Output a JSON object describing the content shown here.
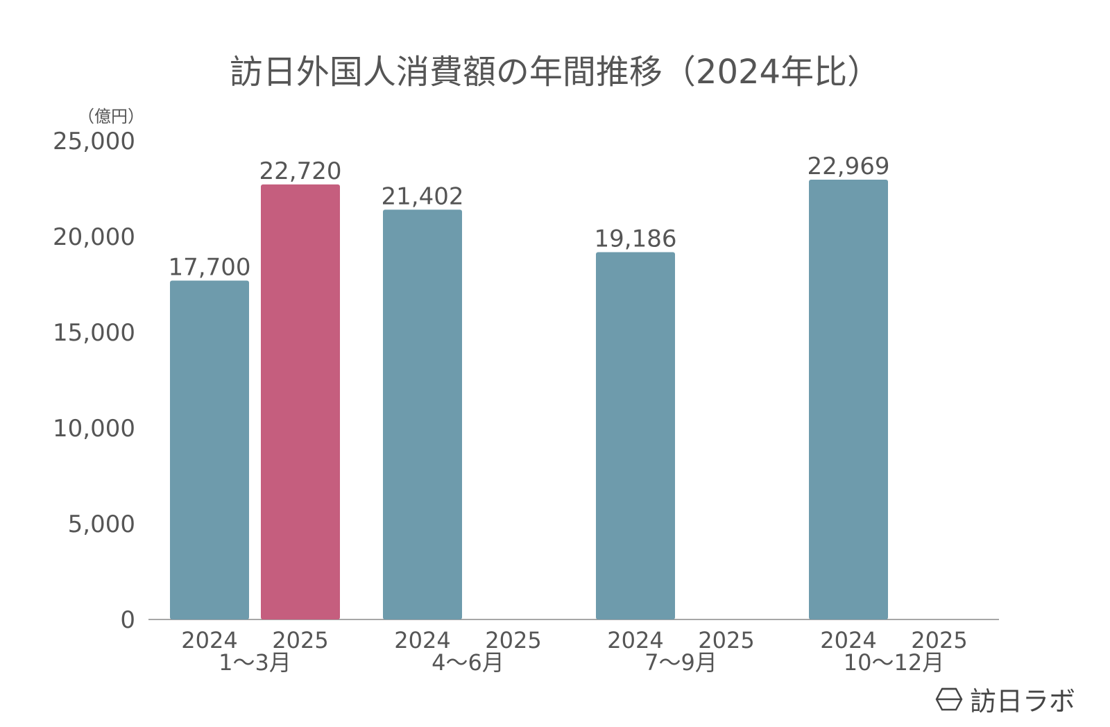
{
  "title": "訪日外国人消費額の年間推移（2024年比）",
  "unit_label": "（億円）",
  "brand": {
    "name": "訪日ラボ",
    "icon": "diamond-logo-icon"
  },
  "colors": {
    "2024": "#6e9bac",
    "2025": "#c55e7e",
    "axis": "#888888",
    "text": "#555555"
  },
  "chart_data": {
    "type": "bar",
    "title": "訪日外国人消費額の年間推移（2024年比）",
    "ylabel": "（億円）",
    "ylim": [
      0,
      25000
    ],
    "yticks": [
      0,
      5000,
      10000,
      15000,
      20000,
      25000
    ],
    "ytick_labels": [
      "0",
      "5,000",
      "10,000",
      "15,000",
      "20,000",
      "25,000"
    ],
    "grid": false,
    "groups": [
      {
        "label": "1〜3月",
        "bars": [
          {
            "year": "2024",
            "value": 17700,
            "label": "17,700"
          },
          {
            "year": "2025",
            "value": 22720,
            "label": "22,720"
          }
        ]
      },
      {
        "label": "4〜6月",
        "bars": [
          {
            "year": "2024",
            "value": 21402,
            "label": "21,402"
          },
          {
            "year": "2025",
            "value": null,
            "label": ""
          }
        ]
      },
      {
        "label": "7〜9月",
        "bars": [
          {
            "year": "2024",
            "value": 19186,
            "label": "19,186"
          },
          {
            "year": "2025",
            "value": null,
            "label": ""
          }
        ]
      },
      {
        "label": "10〜12月",
        "bars": [
          {
            "year": "2024",
            "value": 22969,
            "label": "22,969"
          },
          {
            "year": "2025",
            "value": null,
            "label": ""
          }
        ]
      }
    ]
  }
}
